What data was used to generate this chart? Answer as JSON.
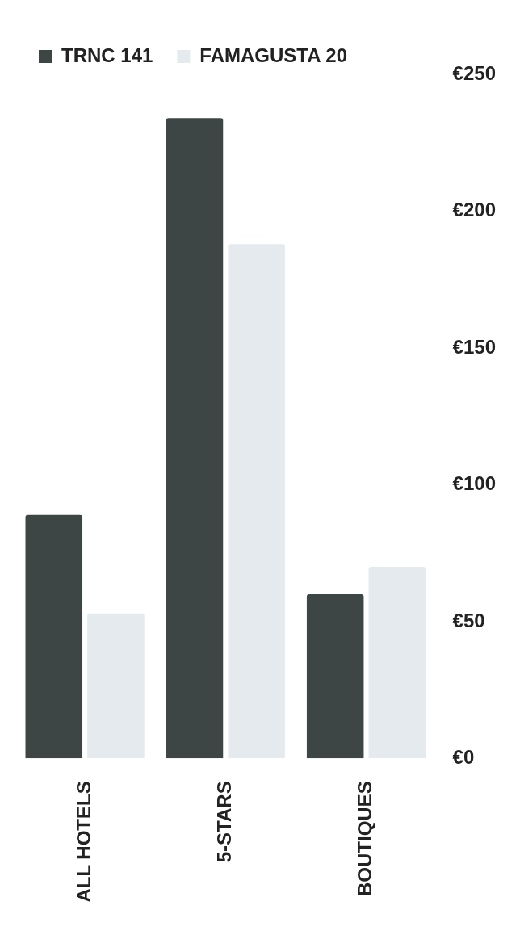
{
  "chart_data": {
    "type": "bar",
    "categories": [
      "ALL HOTELS",
      "5-STARS",
      "BOUTIQUES"
    ],
    "series": [
      {
        "name": "TRNC 141",
        "color": "#3d4644",
        "values": [
          89,
          234,
          60
        ]
      },
      {
        "name": "FAMAGUSTA 20",
        "color": "#e4eaee",
        "values": [
          53,
          188,
          70
        ]
      }
    ],
    "ylim": [
      0,
      250
    ],
    "yticks": [
      {
        "value": 0,
        "label": "€0"
      },
      {
        "value": 50,
        "label": "€50"
      },
      {
        "value": 100,
        "label": "€100"
      },
      {
        "value": 150,
        "label": "€150"
      },
      {
        "value": 200,
        "label": "€200"
      },
      {
        "value": 250,
        "label": "€250"
      }
    ],
    "grid": false,
    "legend": "top left"
  }
}
